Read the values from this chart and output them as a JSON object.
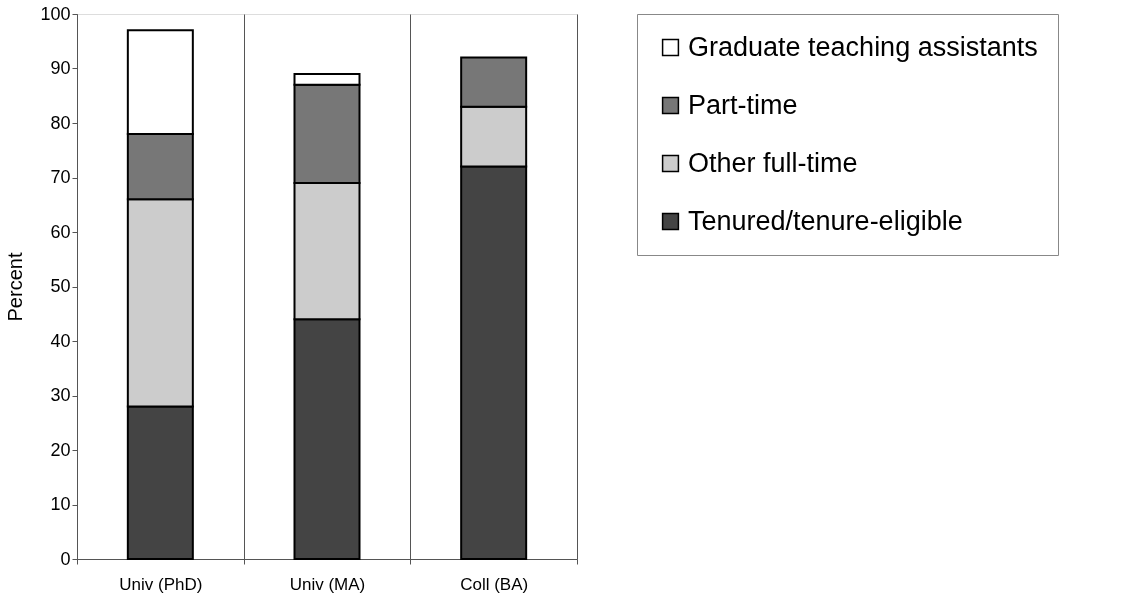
{
  "chart_data": {
    "type": "bar",
    "stacked": true,
    "ylabel": "Percent",
    "categories": [
      "Univ (PhD)",
      "Univ (MA)",
      "Coll (BA)"
    ],
    "series": [
      {
        "name": "Tenured/tenure-eligible",
        "color": "#444444",
        "values": [
          28,
          44,
          72
        ]
      },
      {
        "name": "Other full-time",
        "color": "#cccccc",
        "values": [
          38,
          25,
          11
        ]
      },
      {
        "name": "Part-time",
        "color": "#777777",
        "values": [
          12,
          18,
          9
        ]
      },
      {
        "name": "Graduate teaching assistants",
        "color": "#ffffff",
        "values": [
          19,
          2,
          null
        ]
      }
    ],
    "ylim": [
      0,
      100
    ],
    "yticks": [
      0,
      10,
      20,
      30,
      40,
      50,
      60,
      70,
      80,
      90,
      100
    ],
    "grid": "x",
    "legend": "right"
  }
}
